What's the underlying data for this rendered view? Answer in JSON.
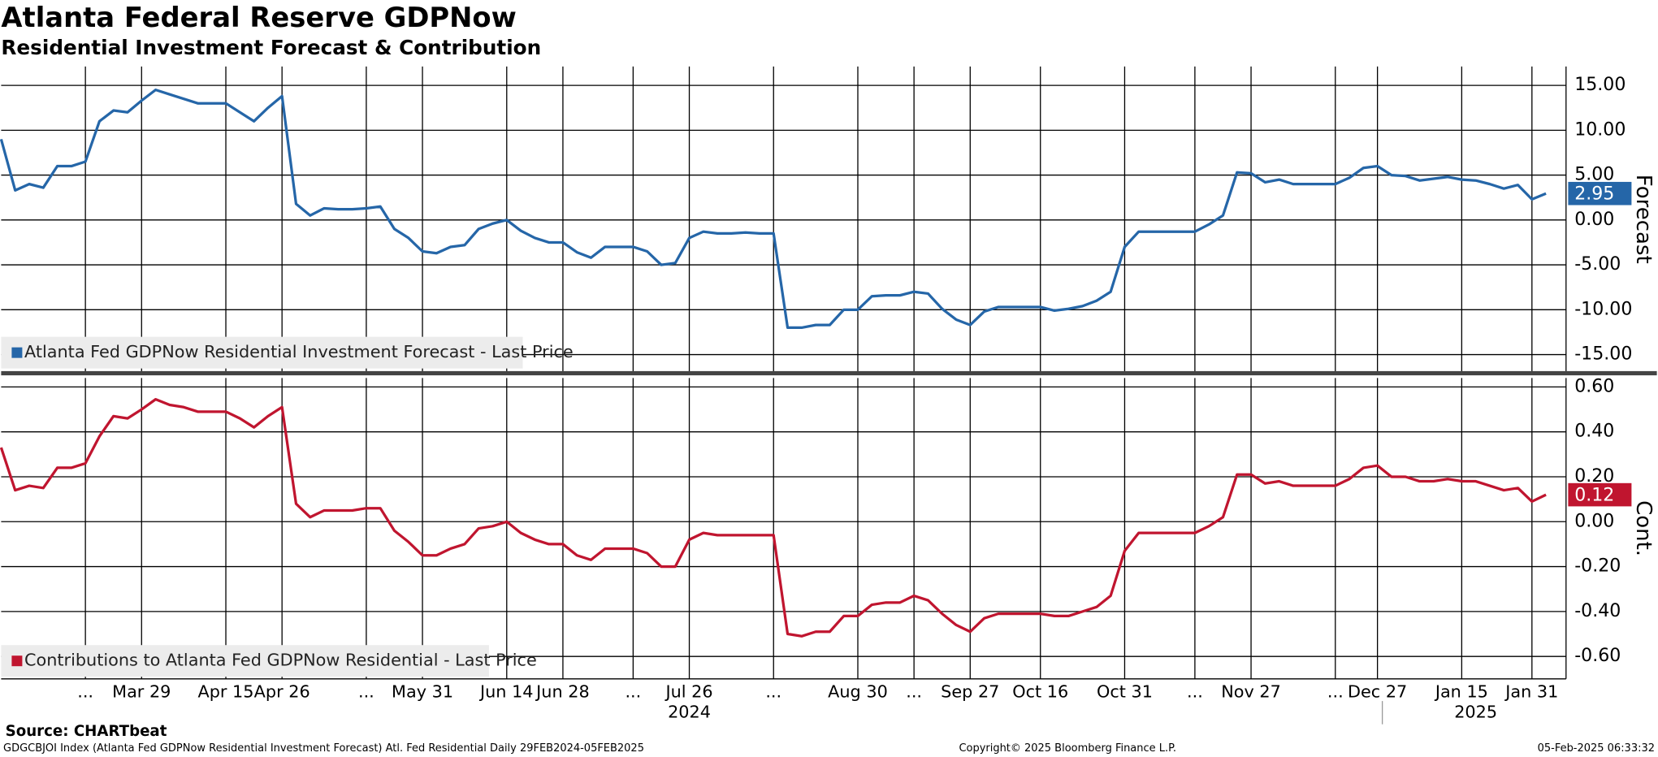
{
  "chart_data": {
    "type": "line",
    "title": "Atlanta Federal Reserve GDPNow",
    "subtitle": "Residential Investment Forecast & Contribution",
    "categories": [
      null,
      null,
      null,
      null,
      null,
      null,
      "...",
      null,
      null,
      null,
      "Mar 29",
      null,
      null,
      null,
      null,
      null,
      "Apr 15",
      null,
      null,
      null,
      "Apr 26",
      null,
      null,
      null,
      null,
      null,
      "...",
      null,
      null,
      null,
      "May 31",
      null,
      null,
      null,
      null,
      null,
      "Jun 14",
      null,
      null,
      null,
      "Jun 28",
      null,
      null,
      null,
      null,
      "...",
      null,
      null,
      null,
      "Jul 26",
      null,
      null,
      null,
      null,
      null,
      "...",
      null,
      null,
      null,
      null,
      null,
      "Aug 30",
      null,
      null,
      null,
      "...",
      null,
      null,
      null,
      "Sep 27",
      null,
      null,
      null,
      null,
      "Oct 16",
      null,
      null,
      null,
      null,
      null,
      "Oct 31",
      null,
      null,
      null,
      null,
      "...",
      null,
      null,
      null,
      "Nov 27",
      null,
      null,
      null,
      null,
      null,
      "...",
      null,
      null,
      "Dec 27",
      null,
      null,
      null,
      null,
      null,
      "Jan 15",
      null,
      null,
      null,
      null,
      "Jan 31",
      null
    ],
    "year_labels": [
      "2024",
      "2025"
    ],
    "panels": [
      {
        "ylabel": "Forecast",
        "ylim": [
          -16.9,
          17.1
        ],
        "yticks": [
          {
            "value": 15,
            "label": "15.00"
          },
          {
            "value": 10,
            "label": "10.00"
          },
          {
            "value": 5,
            "label": "5.00"
          },
          {
            "value": 0,
            "label": "0.00"
          },
          {
            "value": -5,
            "label": "-5.00"
          },
          {
            "value": -10,
            "label": "-10.00"
          },
          {
            "value": -15,
            "label": "-15.00"
          }
        ],
        "series": [
          {
            "name": "Atlanta Fed GDPNow Residential Investment Forecast - Last Price",
            "color": "#2566a8",
            "values": [
              9,
              3.3,
              4,
              3.6,
              6,
              6,
              6.5,
              11,
              12.2,
              12,
              13.3,
              14.5,
              14,
              13.5,
              13,
              13,
              13,
              12,
              11,
              12.5,
              13.8,
              1.8,
              0.5,
              1.3,
              1.2,
              1.2,
              1.3,
              1.5,
              -1,
              -2,
              -3.5,
              -3.7,
              -3,
              -2.8,
              -1,
              -0.4,
              0,
              -1.2,
              -2,
              -2.5,
              -2.5,
              -3.6,
              -4.2,
              -3,
              -3,
              -3,
              -3.5,
              -5,
              -4.8,
              -2,
              -1.3,
              -1.5,
              -1.5,
              -1.4,
              -1.5,
              -1.5,
              -12,
              -12,
              -11.7,
              -11.7,
              -10,
              -10,
              -8.5,
              -8.4,
              -8.4,
              -8,
              -8.2,
              -9.9,
              -11.1,
              -11.7,
              -10.2,
              -9.7,
              -9.7,
              -9.7,
              -9.7,
              -10.1,
              -9.9,
              -9.6,
              -9,
              -8,
              -3,
              -1.3,
              -1.3,
              -1.3,
              -1.3,
              -1.3,
              -0.5,
              0.5,
              5.3,
              5.2,
              4.2,
              4.5,
              4,
              4,
              4,
              4,
              4.7,
              5.8,
              6,
              5,
              4.9,
              4.4,
              4.6,
              4.8,
              4.5,
              4.4,
              4,
              3.5,
              3.9,
              2.3,
              2.95
            ]
          }
        ]
      },
      {
        "ylabel": "Cont.",
        "ylim": [
          -0.7,
          0.64
        ],
        "yticks": [
          {
            "value": 0.6,
            "label": "0.60"
          },
          {
            "value": 0.4,
            "label": "0.40"
          },
          {
            "value": 0.2,
            "label": "0.20"
          },
          {
            "value": 0,
            "label": "0.00"
          },
          {
            "value": -0.2,
            "label": "-0.20"
          },
          {
            "value": -0.4,
            "label": "-0.40"
          },
          {
            "value": -0.6,
            "label": "-0.60"
          }
        ],
        "series": [
          {
            "name": "Contributions to Atlanta Fed GDPNow Residential - Last Price",
            "color": "#c0152f",
            "values": [
              0.33,
              0.14,
              0.16,
              0.15,
              0.24,
              0.24,
              0.26,
              0.38,
              0.47,
              0.46,
              0.5,
              0.545,
              0.52,
              0.51,
              0.49,
              0.49,
              0.49,
              0.46,
              0.42,
              0.47,
              0.51,
              0.08,
              0.02,
              0.05,
              0.05,
              0.05,
              0.06,
              0.06,
              -0.04,
              -0.09,
              -0.15,
              -0.15,
              -0.12,
              -0.1,
              -0.03,
              -0.02,
              0,
              -0.05,
              -0.08,
              -0.1,
              -0.1,
              -0.15,
              -0.17,
              -0.12,
              -0.12,
              -0.12,
              -0.14,
              -0.2,
              -0.2,
              -0.08,
              -0.05,
              -0.06,
              -0.06,
              -0.06,
              -0.06,
              -0.06,
              -0.5,
              -0.51,
              -0.49,
              -0.49,
              -0.42,
              -0.42,
              -0.37,
              -0.36,
              -0.36,
              -0.33,
              -0.35,
              -0.41,
              -0.46,
              -0.49,
              -0.43,
              -0.41,
              -0.41,
              -0.41,
              -0.41,
              -0.42,
              -0.42,
              -0.4,
              -0.38,
              -0.33,
              -0.13,
              -0.05,
              -0.05,
              -0.05,
              -0.05,
              -0.05,
              -0.02,
              0.02,
              0.21,
              0.21,
              0.17,
              0.18,
              0.16,
              0.16,
              0.16,
              0.16,
              0.19,
              0.24,
              0.25,
              0.2,
              0.2,
              0.18,
              0.18,
              0.19,
              0.18,
              0.18,
              0.16,
              0.14,
              0.15,
              0.09,
              0.12
            ]
          }
        ]
      }
    ],
    "source": "Source: CHARTbeat",
    "footer": {
      "left": "GDGCBJOI Index (Atlanta Fed GDPNow Residential Investment Forecast) Atl. Fed Residential  Daily 29FEB2024-05FEB2025",
      "center": "Copyright© 2025 Bloomberg Finance L.P.",
      "right": "05-Feb-2025 06:33:32"
    }
  }
}
